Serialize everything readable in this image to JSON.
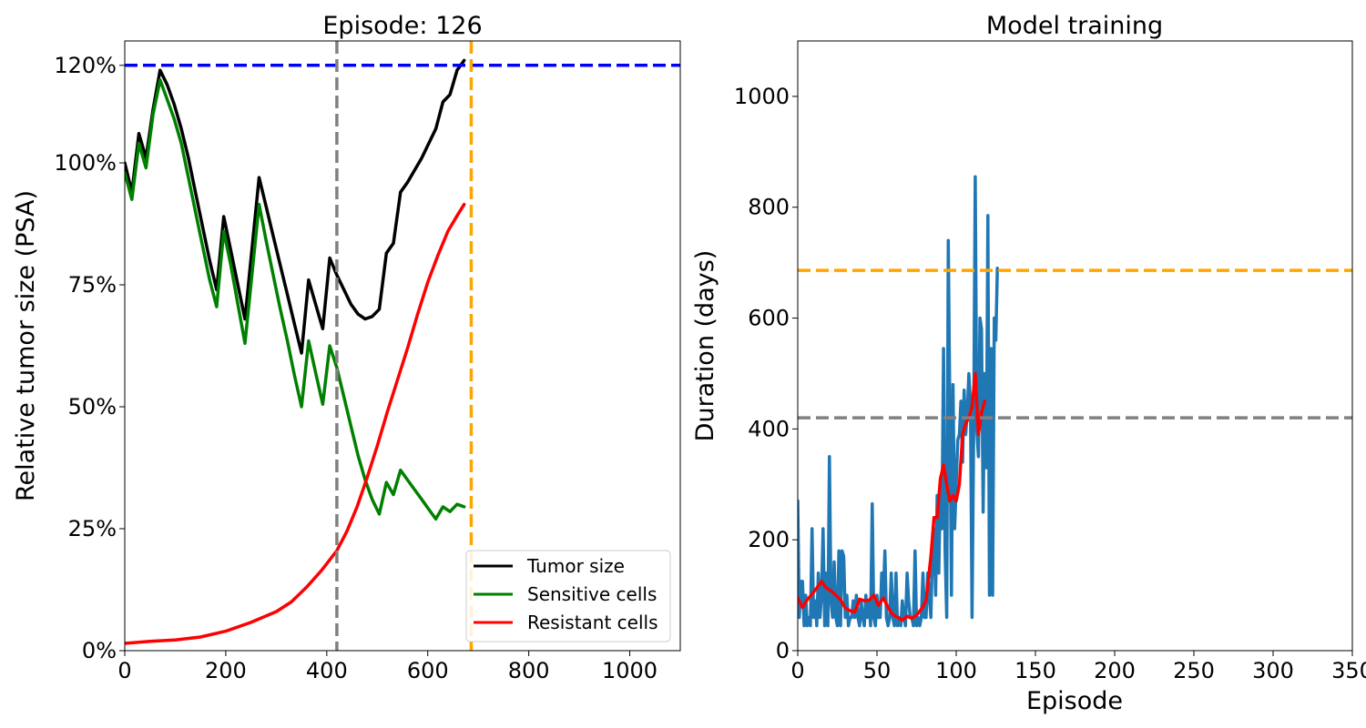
{
  "chart_data": [
    {
      "type": "line",
      "title": "Episode: 126",
      "xlabel": "",
      "ylabel": "Relative tumor size (PSA)",
      "xlim": [
        0,
        1100
      ],
      "ylim": [
        0,
        1.25
      ],
      "xticks": [
        0,
        200,
        400,
        600,
        800,
        1000
      ],
      "yticks": [
        0,
        0.25,
        0.5,
        0.75,
        1.0,
        1.2
      ],
      "ytick_labels": [
        "0%",
        "25%",
        "50%",
        "75%",
        "100%",
        "120%"
      ],
      "grid": false,
      "legend_position": "lower-right",
      "colors": {
        "tumor": "#000000",
        "sensitive": "#008000",
        "resistant": "#ff0000",
        "threshold": "#0000ff",
        "vline_gray": "#808080",
        "vline_orange": "#ffa500"
      },
      "hlines": [
        {
          "y": 1.2,
          "color": "#0000ff",
          "style": "dashed"
        }
      ],
      "vlines": [
        {
          "x": 420,
          "color": "#808080",
          "style": "dashed"
        },
        {
          "x": 686,
          "color": "#ffa500",
          "style": "dashed"
        }
      ],
      "series": [
        {
          "name": "Tumor size",
          "color": "#000000",
          "x": [
            0,
            14,
            28,
            42,
            56,
            70,
            84,
            98,
            112,
            126,
            140,
            154,
            168,
            182,
            196,
            210,
            224,
            238,
            266,
            280,
            294,
            308,
            322,
            336,
            350,
            364,
            378,
            392,
            406,
            420,
            434,
            448,
            462,
            476,
            490,
            504,
            518,
            532,
            546,
            560,
            574,
            588,
            602,
            616,
            630,
            644,
            658,
            672
          ],
          "values": [
            1.0,
            0.94,
            1.06,
            1.01,
            1.11,
            1.19,
            1.16,
            1.12,
            1.07,
            1.01,
            0.94,
            0.87,
            0.8,
            0.74,
            0.89,
            0.82,
            0.75,
            0.68,
            0.97,
            0.91,
            0.85,
            0.79,
            0.73,
            0.67,
            0.61,
            0.76,
            0.71,
            0.66,
            0.805,
            0.77,
            0.74,
            0.71,
            0.69,
            0.68,
            0.685,
            0.7,
            0.815,
            0.835,
            0.94,
            0.96,
            0.985,
            1.01,
            1.04,
            1.07,
            1.125,
            1.14,
            1.19,
            1.21
          ]
        },
        {
          "name": "Sensitive cells",
          "color": "#008000",
          "x": [
            0,
            14,
            28,
            42,
            56,
            70,
            84,
            98,
            112,
            126,
            140,
            154,
            168,
            182,
            196,
            210,
            224,
            238,
            266,
            280,
            294,
            308,
            322,
            336,
            350,
            364,
            378,
            392,
            406,
            420,
            434,
            448,
            462,
            476,
            490,
            504,
            518,
            532,
            546,
            560,
            574,
            588,
            602,
            616,
            630,
            644,
            658,
            672
          ],
          "values": [
            0.98,
            0.925,
            1.04,
            0.99,
            1.1,
            1.17,
            1.13,
            1.09,
            1.04,
            0.97,
            0.9,
            0.83,
            0.76,
            0.705,
            0.86,
            0.79,
            0.71,
            0.63,
            0.915,
            0.84,
            0.77,
            0.7,
            0.635,
            0.565,
            0.5,
            0.635,
            0.57,
            0.505,
            0.625,
            0.58,
            0.52,
            0.46,
            0.4,
            0.35,
            0.31,
            0.28,
            0.345,
            0.32,
            0.37,
            0.35,
            0.33,
            0.31,
            0.29,
            0.27,
            0.295,
            0.285,
            0.3,
            0.295
          ]
        },
        {
          "name": "Resistant cells",
          "color": "#ff0000",
          "x": [
            0,
            50,
            100,
            150,
            200,
            250,
            300,
            330,
            360,
            390,
            420,
            440,
            460,
            480,
            500,
            520,
            540,
            560,
            580,
            600,
            620,
            640,
            660,
            672
          ],
          "values": [
            0.015,
            0.019,
            0.022,
            0.028,
            0.04,
            0.058,
            0.08,
            0.1,
            0.13,
            0.165,
            0.205,
            0.245,
            0.295,
            0.355,
            0.42,
            0.49,
            0.555,
            0.62,
            0.69,
            0.755,
            0.81,
            0.86,
            0.895,
            0.915
          ]
        }
      ]
    },
    {
      "type": "line",
      "title": "Model training",
      "xlabel": "Episode",
      "ylabel": "Duration (days)",
      "xlim": [
        0,
        350
      ],
      "ylim": [
        0,
        1100
      ],
      "xticks": [
        0,
        50,
        100,
        150,
        200,
        250,
        300,
        350
      ],
      "yticks": [
        0,
        200,
        400,
        600,
        800,
        1000
      ],
      "grid": false,
      "hlines": [
        {
          "y": 686,
          "color": "#ffa500",
          "style": "dashed"
        },
        {
          "y": 420,
          "color": "#808080",
          "style": "dashed"
        }
      ],
      "series": [
        {
          "name": "",
          "color": "#1f77b4",
          "x": [
            0,
            1,
            2,
            3,
            4,
            5,
            6,
            7,
            8,
            9,
            10,
            11,
            12,
            13,
            14,
            15,
            16,
            17,
            18,
            19,
            20,
            21,
            22,
            23,
            24,
            25,
            26,
            27,
            28,
            29,
            30,
            31,
            32,
            33,
            34,
            35,
            36,
            37,
            38,
            39,
            40,
            41,
            42,
            43,
            44,
            45,
            46,
            47,
            48,
            49,
            50,
            51,
            52,
            53,
            54,
            55,
            56,
            57,
            58,
            59,
            60,
            61,
            62,
            63,
            64,
            65,
            66,
            67,
            68,
            69,
            70,
            71,
            72,
            73,
            74,
            75,
            76,
            77,
            78,
            79,
            80,
            81,
            82,
            83,
            84,
            85,
            86,
            87,
            88,
            89,
            90,
            91,
            92,
            93,
            94,
            95,
            96,
            97,
            98,
            99,
            100,
            101,
            102,
            103,
            104,
            105,
            106,
            107,
            108,
            109,
            110,
            111,
            112,
            113,
            114,
            115,
            116,
            117,
            118,
            119,
            120,
            121,
            122,
            123,
            124,
            125,
            126
          ],
          "values": [
            270,
            60,
            125,
            125,
            45,
            100,
            45,
            60,
            45,
            220,
            60,
            90,
            45,
            140,
            60,
            100,
            220,
            45,
            140,
            45,
            350,
            90,
            60,
            160,
            60,
            45,
            180,
            45,
            180,
            170,
            60,
            100,
            45,
            60,
            60,
            90,
            60,
            100,
            60,
            45,
            90,
            60,
            45,
            100,
            60,
            90,
            45,
            265,
            60,
            45,
            100,
            60,
            60,
            140,
            100,
            180,
            60,
            45,
            60,
            140,
            60,
            45,
            140,
            45,
            60,
            45,
            90,
            60,
            45,
            140,
            90,
            60,
            60,
            45,
            180,
            45,
            60,
            45,
            60,
            140,
            60,
            60,
            140,
            100,
            60,
            180,
            220,
            100,
            280,
            140,
            300,
            220,
            545,
            180,
            60,
            740,
            440,
            100,
            480,
            220,
            300,
            380,
            390,
            450,
            340,
            470,
            390,
            430,
            500,
            445,
            60,
            380,
            855,
            400,
            350,
            600,
            580,
            250,
            500,
            330,
            785,
            100,
            545,
            100,
            600,
            560,
            690
          ]
        },
        {
          "name": "",
          "color": "#ff0000",
          "x": [
            0,
            3,
            6,
            9,
            12,
            15,
            18,
            21,
            24,
            27,
            30,
            33,
            36,
            39,
            42,
            45,
            48,
            51,
            54,
            57,
            60,
            63,
            66,
            69,
            72,
            75,
            78,
            81,
            84,
            86,
            88,
            90,
            92,
            94,
            96,
            98,
            100,
            102,
            104,
            106,
            108,
            110,
            112,
            114,
            116,
            118
          ],
          "values": [
            95,
            78,
            92,
            102,
            113,
            125,
            113,
            108,
            100,
            92,
            77,
            72,
            70,
            93,
            90,
            91,
            100,
            82,
            95,
            78,
            65,
            60,
            55,
            62,
            58,
            64,
            75,
            90,
            170,
            240,
            240,
            310,
            335,
            300,
            270,
            280,
            270,
            300,
            390,
            410,
            420,
            440,
            500,
            390,
            430,
            450
          ]
        }
      ]
    }
  ]
}
